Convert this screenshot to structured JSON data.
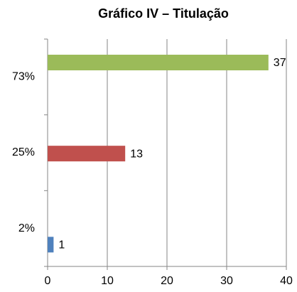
{
  "chart_data": {
    "type": "hbar",
    "title": "Gráfico IV – Titulação",
    "categories": [
      "73%",
      "25%",
      "2%"
    ],
    "values": [
      37,
      13,
      1
    ],
    "colors": [
      "#9bbb59",
      "#c0504d",
      "#4f81bd"
    ],
    "xlim": [
      0,
      40
    ],
    "xticks": [
      0,
      10,
      20,
      30,
      40
    ],
    "grid": true
  }
}
